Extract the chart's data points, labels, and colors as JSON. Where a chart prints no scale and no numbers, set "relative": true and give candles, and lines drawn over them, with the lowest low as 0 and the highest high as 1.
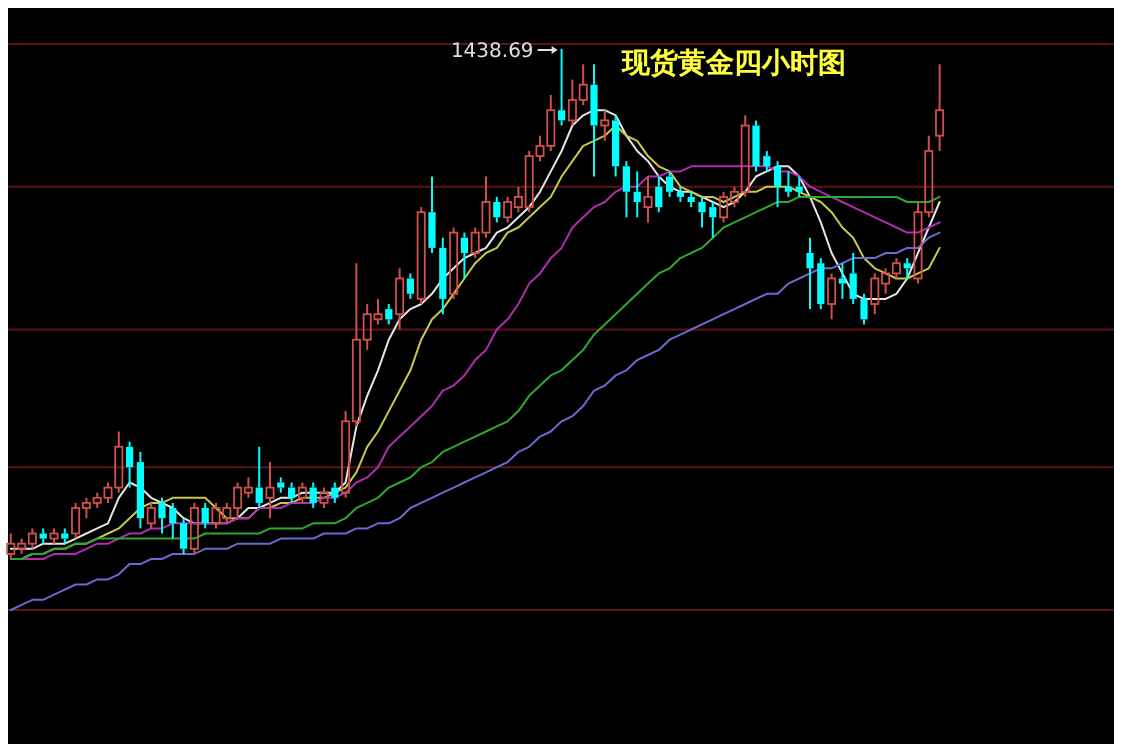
{
  "chart_data": {
    "type": "candlestick",
    "title": "现货黄金四小时图",
    "annotations": [
      "1438.69"
    ],
    "relative": true,
    "ref_lines": [
      {
        "axis": "y",
        "value": 1.01,
        "color": "#5c1414"
      },
      {
        "axis": "y",
        "value": 0.73,
        "color": "#5c1414"
      },
      {
        "axis": "y",
        "value": 0.45,
        "color": "#5c1414"
      },
      {
        "axis": "y",
        "value": 0.18,
        "color": "#5c1414"
      },
      {
        "axis": "y",
        "value": -0.1,
        "color": "#5c1414"
      }
    ],
    "categories": [
      null,
      null,
      null,
      null,
      null,
      null,
      null,
      null,
      null,
      null,
      null,
      null,
      null,
      null,
      null,
      null,
      null,
      null,
      null,
      null,
      null,
      null,
      null,
      null,
      null,
      null,
      null,
      null,
      null,
      null,
      null,
      null,
      null,
      null,
      null,
      null,
      null,
      null,
      null,
      null,
      null,
      null,
      null,
      null,
      null,
      null,
      null,
      null,
      null,
      null,
      null,
      null,
      null,
      null,
      null,
      null,
      null,
      null,
      null,
      null,
      null,
      null,
      null,
      null,
      null,
      null,
      null,
      null,
      null,
      null,
      null,
      null,
      null,
      null,
      null,
      null,
      null,
      null,
      null,
      null,
      null,
      null,
      null,
      null,
      null,
      null,
      null
    ],
    "ohlc": [
      [
        0.01,
        0.05,
        0.0,
        0.03
      ],
      [
        0.02,
        0.04,
        0.01,
        0.03
      ],
      [
        0.03,
        0.06,
        0.02,
        0.05
      ],
      [
        0.05,
        0.06,
        0.03,
        0.04
      ],
      [
        0.04,
        0.06,
        0.03,
        0.05
      ],
      [
        0.05,
        0.06,
        0.03,
        0.04
      ],
      [
        0.05,
        0.11,
        0.04,
        0.1
      ],
      [
        0.1,
        0.12,
        0.08,
        0.11
      ],
      [
        0.11,
        0.13,
        0.1,
        0.12
      ],
      [
        0.12,
        0.15,
        0.11,
        0.14
      ],
      [
        0.14,
        0.25,
        0.13,
        0.22
      ],
      [
        0.22,
        0.23,
        0.14,
        0.18
      ],
      [
        0.19,
        0.21,
        0.06,
        0.08
      ],
      [
        0.07,
        0.11,
        0.06,
        0.1
      ],
      [
        0.11,
        0.12,
        0.05,
        0.08
      ],
      [
        0.1,
        0.11,
        0.04,
        0.07
      ],
      [
        0.07,
        0.08,
        0.01,
        0.02
      ],
      [
        0.02,
        0.11,
        0.01,
        0.1
      ],
      [
        0.1,
        0.11,
        0.06,
        0.07
      ],
      [
        0.07,
        0.11,
        0.06,
        0.1
      ],
      [
        0.08,
        0.11,
        0.07,
        0.1
      ],
      [
        0.1,
        0.15,
        0.08,
        0.14
      ],
      [
        0.13,
        0.16,
        0.12,
        0.14
      ],
      [
        0.14,
        0.22,
        0.1,
        0.11
      ],
      [
        0.12,
        0.19,
        0.08,
        0.14
      ],
      [
        0.15,
        0.16,
        0.13,
        0.14
      ],
      [
        0.14,
        0.15,
        0.11,
        0.12
      ],
      [
        0.12,
        0.15,
        0.11,
        0.14
      ],
      [
        0.14,
        0.15,
        0.1,
        0.11
      ],
      [
        0.11,
        0.14,
        0.1,
        0.13
      ],
      [
        0.14,
        0.15,
        0.11,
        0.12
      ],
      [
        0.13,
        0.29,
        0.12,
        0.27
      ],
      [
        0.27,
        0.58,
        0.26,
        0.43
      ],
      [
        0.43,
        0.5,
        0.41,
        0.48
      ],
      [
        0.47,
        0.51,
        0.46,
        0.48
      ],
      [
        0.49,
        0.5,
        0.46,
        0.47
      ],
      [
        0.48,
        0.57,
        0.45,
        0.55
      ],
      [
        0.55,
        0.56,
        0.51,
        0.52
      ],
      [
        0.51,
        0.69,
        0.5,
        0.68
      ],
      [
        0.68,
        0.75,
        0.6,
        0.61
      ],
      [
        0.61,
        0.63,
        0.48,
        0.51
      ],
      [
        0.52,
        0.65,
        0.51,
        0.64
      ],
      [
        0.63,
        0.64,
        0.55,
        0.6
      ],
      [
        0.6,
        0.65,
        0.59,
        0.64
      ],
      [
        0.64,
        0.75,
        0.63,
        0.7
      ],
      [
        0.7,
        0.71,
        0.66,
        0.67
      ],
      [
        0.67,
        0.71,
        0.66,
        0.7
      ],
      [
        0.69,
        0.73,
        0.68,
        0.71
      ],
      [
        0.69,
        0.8,
        0.68,
        0.79
      ],
      [
        0.79,
        0.83,
        0.78,
        0.81
      ],
      [
        0.81,
        0.91,
        0.8,
        0.88
      ],
      [
        0.88,
        1.0,
        0.85,
        0.86
      ],
      [
        0.86,
        0.94,
        0.85,
        0.9
      ],
      [
        0.9,
        0.97,
        0.89,
        0.93
      ],
      [
        0.93,
        0.97,
        0.75,
        0.85
      ],
      [
        0.85,
        0.88,
        0.82,
        0.86
      ],
      [
        0.86,
        0.87,
        0.75,
        0.77
      ],
      [
        0.77,
        0.78,
        0.67,
        0.72
      ],
      [
        0.72,
        0.76,
        0.67,
        0.7
      ],
      [
        0.69,
        0.75,
        0.66,
        0.71
      ],
      [
        0.73,
        0.75,
        0.68,
        0.69
      ],
      [
        0.75,
        0.76,
        0.71,
        0.72
      ],
      [
        0.72,
        0.73,
        0.7,
        0.71
      ],
      [
        0.71,
        0.72,
        0.69,
        0.7
      ],
      [
        0.7,
        0.71,
        0.65,
        0.68
      ],
      [
        0.69,
        0.7,
        0.63,
        0.67
      ],
      [
        0.67,
        0.72,
        0.66,
        0.71
      ],
      [
        0.7,
        0.73,
        0.69,
        0.72
      ],
      [
        0.72,
        0.87,
        0.71,
        0.85
      ],
      [
        0.85,
        0.86,
        0.76,
        0.77
      ],
      [
        0.79,
        0.8,
        0.76,
        0.77
      ],
      [
        0.77,
        0.78,
        0.69,
        0.73
      ],
      [
        0.73,
        0.76,
        0.71,
        0.72
      ],
      [
        0.73,
        0.75,
        0.71,
        0.72
      ],
      [
        0.6,
        0.63,
        0.49,
        0.57
      ],
      [
        0.58,
        0.59,
        0.49,
        0.5
      ],
      [
        0.5,
        0.56,
        0.47,
        0.55
      ],
      [
        0.55,
        0.58,
        0.51,
        0.54
      ],
      [
        0.56,
        0.6,
        0.5,
        0.51
      ],
      [
        0.51,
        0.52,
        0.46,
        0.47
      ],
      [
        0.5,
        0.56,
        0.48,
        0.55
      ],
      [
        0.54,
        0.57,
        0.52,
        0.56
      ],
      [
        0.56,
        0.59,
        0.55,
        0.58
      ],
      [
        0.58,
        0.59,
        0.55,
        0.57
      ],
      [
        0.55,
        0.7,
        0.54,
        0.68
      ],
      [
        0.68,
        0.83,
        0.67,
        0.8
      ],
      [
        0.83,
        0.97,
        0.8,
        0.88
      ]
    ],
    "series": [
      {
        "type": "line",
        "color": "#e6e6e6",
        "values": [
          0.02,
          0.02,
          0.02,
          0.03,
          0.03,
          0.03,
          0.04,
          0.05,
          0.06,
          0.07,
          0.12,
          0.15,
          0.14,
          0.12,
          0.11,
          0.1,
          0.08,
          0.07,
          0.07,
          0.07,
          0.07,
          0.08,
          0.1,
          0.1,
          0.11,
          0.12,
          0.12,
          0.13,
          0.13,
          0.13,
          0.13,
          0.15,
          0.26,
          0.32,
          0.37,
          0.43,
          0.47,
          0.49,
          0.5,
          0.52,
          0.55,
          0.57,
          0.59,
          0.6,
          0.61,
          0.64,
          0.65,
          0.67,
          0.69,
          0.72,
          0.76,
          0.8,
          0.85,
          0.87,
          0.88,
          0.88,
          0.87,
          0.83,
          0.8,
          0.78,
          0.75,
          0.73,
          0.72,
          0.72,
          0.71,
          0.7,
          0.69,
          0.7,
          0.72,
          0.75,
          0.76,
          0.77,
          0.77,
          0.75,
          0.71,
          0.66,
          0.6,
          0.56,
          0.52,
          0.51,
          0.51,
          0.51,
          0.52,
          0.55,
          0.6,
          0.65,
          0.7
        ]
      },
      {
        "type": "line",
        "color": "#c8c84a",
        "values": [
          0.0,
          0.0,
          0.01,
          0.01,
          0.02,
          0.02,
          0.03,
          0.03,
          0.04,
          0.05,
          0.06,
          0.08,
          0.1,
          0.11,
          0.11,
          0.12,
          0.12,
          0.12,
          0.12,
          0.1,
          0.08,
          0.08,
          0.08,
          0.1,
          0.1,
          0.11,
          0.11,
          0.12,
          0.12,
          0.12,
          0.13,
          0.14,
          0.17,
          0.22,
          0.25,
          0.29,
          0.33,
          0.37,
          0.43,
          0.47,
          0.49,
          0.52,
          0.55,
          0.58,
          0.6,
          0.61,
          0.64,
          0.65,
          0.67,
          0.69,
          0.71,
          0.75,
          0.78,
          0.81,
          0.82,
          0.83,
          0.85,
          0.83,
          0.82,
          0.79,
          0.77,
          0.76,
          0.73,
          0.72,
          0.71,
          0.71,
          0.7,
          0.71,
          0.72,
          0.72,
          0.73,
          0.73,
          0.73,
          0.72,
          0.71,
          0.7,
          0.68,
          0.65,
          0.63,
          0.59,
          0.57,
          0.56,
          0.55,
          0.55,
          0.56,
          0.57,
          0.61
        ]
      },
      {
        "type": "line",
        "color": "#b02cb0",
        "values": [
          0.0,
          0.0,
          0.0,
          0.0,
          0.01,
          0.01,
          0.01,
          0.02,
          0.03,
          0.03,
          0.04,
          0.05,
          0.05,
          0.06,
          0.06,
          0.07,
          0.07,
          0.07,
          0.07,
          0.07,
          0.07,
          0.08,
          0.08,
          0.1,
          0.1,
          0.1,
          0.11,
          0.11,
          0.11,
          0.12,
          0.12,
          0.13,
          0.15,
          0.16,
          0.18,
          0.22,
          0.24,
          0.26,
          0.28,
          0.3,
          0.33,
          0.34,
          0.36,
          0.39,
          0.41,
          0.45,
          0.47,
          0.5,
          0.54,
          0.56,
          0.59,
          0.61,
          0.65,
          0.67,
          0.69,
          0.7,
          0.72,
          0.73,
          0.73,
          0.75,
          0.75,
          0.76,
          0.76,
          0.77,
          0.77,
          0.77,
          0.77,
          0.77,
          0.77,
          0.77,
          0.77,
          0.76,
          0.76,
          0.75,
          0.73,
          0.72,
          0.71,
          0.7,
          0.69,
          0.68,
          0.67,
          0.66,
          0.65,
          0.64,
          0.64,
          0.65,
          0.66
        ]
      },
      {
        "type": "line",
        "color": "#2ea82e",
        "values": [
          0.0,
          0.0,
          0.01,
          0.01,
          0.02,
          0.02,
          0.03,
          0.03,
          0.04,
          0.04,
          0.04,
          0.04,
          0.04,
          0.04,
          0.04,
          0.04,
          0.04,
          0.04,
          0.05,
          0.05,
          0.05,
          0.05,
          0.05,
          0.05,
          0.06,
          0.06,
          0.06,
          0.06,
          0.07,
          0.07,
          0.07,
          0.08,
          0.1,
          0.11,
          0.12,
          0.14,
          0.15,
          0.16,
          0.18,
          0.19,
          0.21,
          0.22,
          0.23,
          0.24,
          0.25,
          0.26,
          0.27,
          0.29,
          0.32,
          0.34,
          0.36,
          0.37,
          0.39,
          0.41,
          0.44,
          0.46,
          0.48,
          0.5,
          0.52,
          0.54,
          0.56,
          0.57,
          0.59,
          0.6,
          0.61,
          0.63,
          0.65,
          0.66,
          0.67,
          0.68,
          0.69,
          0.7,
          0.7,
          0.71,
          0.71,
          0.71,
          0.71,
          0.71,
          0.71,
          0.71,
          0.71,
          0.71,
          0.71,
          0.7,
          0.7,
          0.7,
          0.71
        ]
      },
      {
        "type": "line",
        "color": "#6a6ad0",
        "values": [
          -0.1,
          -0.09,
          -0.08,
          -0.08,
          -0.07,
          -0.06,
          -0.05,
          -0.05,
          -0.04,
          -0.04,
          -0.03,
          -0.01,
          -0.01,
          0.0,
          0.0,
          0.01,
          0.01,
          0.01,
          0.02,
          0.02,
          0.02,
          0.03,
          0.03,
          0.03,
          0.03,
          0.04,
          0.04,
          0.04,
          0.04,
          0.05,
          0.05,
          0.05,
          0.06,
          0.06,
          0.07,
          0.07,
          0.08,
          0.1,
          0.11,
          0.12,
          0.13,
          0.14,
          0.15,
          0.16,
          0.17,
          0.18,
          0.19,
          0.21,
          0.22,
          0.24,
          0.25,
          0.27,
          0.28,
          0.3,
          0.33,
          0.34,
          0.36,
          0.37,
          0.39,
          0.4,
          0.41,
          0.43,
          0.44,
          0.45,
          0.46,
          0.47,
          0.48,
          0.49,
          0.5,
          0.51,
          0.52,
          0.52,
          0.54,
          0.55,
          0.56,
          0.57,
          0.57,
          0.58,
          0.59,
          0.59,
          0.59,
          0.6,
          0.6,
          0.61,
          0.61,
          0.63,
          0.64
        ]
      }
    ]
  }
}
